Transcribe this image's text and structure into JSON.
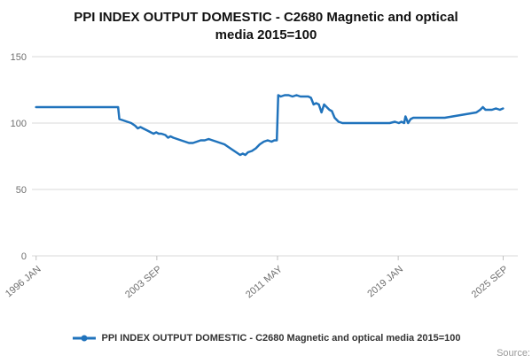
{
  "title": "PPI INDEX OUTPUT DOMESTIC - C2680 Magnetic and optical media 2015=100",
  "legend": {
    "label": "PPI INDEX OUTPUT DOMESTIC - C2680 Magnetic and optical media 2015=100"
  },
  "source_label": "Source:",
  "colors": {
    "line": "#2073bc",
    "grid": "#d9d9d9",
    "tick": "#c0c0c0",
    "axis_text": "#6f6f6f"
  },
  "chart_data": {
    "type": "line",
    "title": "PPI INDEX OUTPUT DOMESTIC - C2680 Magnetic and optical media 2015=100",
    "xlabel": "",
    "ylabel": "",
    "ylim": [
      0,
      150
    ],
    "xlim": [
      1996.0,
      2025.85
    ],
    "yticks": [
      0,
      50,
      100,
      150
    ],
    "xticks": [
      {
        "pos": 1996.042,
        "label": "1996 JAN"
      },
      {
        "pos": 2003.708,
        "label": "2003 SEP"
      },
      {
        "pos": 2011.375,
        "label": "2011 MAY"
      },
      {
        "pos": 2019.042,
        "label": "2019 JAN"
      },
      {
        "pos": 2025.708,
        "label": "2025 SEP"
      }
    ],
    "grid": "horizontal",
    "legend_position": "bottom",
    "x": [
      1996.04,
      1996.5,
      1997,
      1997.5,
      1998,
      1998.5,
      1999,
      1999.5,
      2000,
      2000.5,
      2001,
      2001.25,
      2001.33,
      2001.58,
      2001.83,
      2002.08,
      2002.33,
      2002.5,
      2002.67,
      2002.83,
      2003,
      2003.17,
      2003.33,
      2003.5,
      2003.67,
      2003.83,
      2004,
      2004.25,
      2004.42,
      2004.58,
      2004.75,
      2005,
      2005.25,
      2005.5,
      2005.75,
      2006,
      2006.25,
      2006.5,
      2006.75,
      2007,
      2007.25,
      2007.5,
      2007.75,
      2008,
      2008.25,
      2008.5,
      2008.75,
      2009,
      2009.17,
      2009.33,
      2009.5,
      2009.75,
      2010,
      2010.25,
      2010.5,
      2010.75,
      2011,
      2011.17,
      2011.33,
      2011.42,
      2011.58,
      2011.83,
      2012.08,
      2012.33,
      2012.58,
      2012.83,
      2013.08,
      2013.33,
      2013.5,
      2013.67,
      2013.83,
      2014,
      2014.17,
      2014.33,
      2014.5,
      2014.67,
      2014.83,
      2015,
      2015.25,
      2015.5,
      2015.75,
      2016,
      2016.5,
      2017,
      2017.5,
      2018,
      2018.5,
      2018.83,
      2019.08,
      2019.25,
      2019.42,
      2019.5,
      2019.67,
      2019.83,
      2020,
      2020.5,
      2021,
      2021.5,
      2022,
      2022.5,
      2023,
      2023.5,
      2024,
      2024.25,
      2024.42,
      2024.58,
      2024.83,
      2025,
      2025.25,
      2025.5,
      2025.7
    ],
    "values": [
      112,
      112,
      112,
      112,
      112,
      112,
      112,
      112,
      112,
      112,
      112,
      112,
      103,
      102,
      101,
      100,
      98,
      96,
      97,
      96,
      95,
      94,
      93,
      92,
      93,
      92,
      92,
      91,
      89,
      90,
      89,
      88,
      87,
      86,
      85,
      85,
      86,
      87,
      87,
      88,
      87,
      86,
      85,
      84,
      82,
      80,
      78,
      76,
      77,
      76,
      78,
      79,
      81,
      84,
      86,
      87,
      86,
      87,
      87,
      121,
      120,
      121,
      121,
      120,
      121,
      120,
      120,
      120,
      119,
      114,
      115,
      114,
      108,
      114,
      112,
      110,
      109,
      104,
      101,
      100,
      100,
      100,
      100,
      100,
      100,
      100,
      100,
      101,
      100,
      101,
      100,
      105,
      100,
      103,
      104,
      104,
      104,
      104,
      104,
      105,
      106,
      107,
      108,
      110,
      112,
      110,
      110,
      110,
      111,
      110,
      111
    ]
  }
}
